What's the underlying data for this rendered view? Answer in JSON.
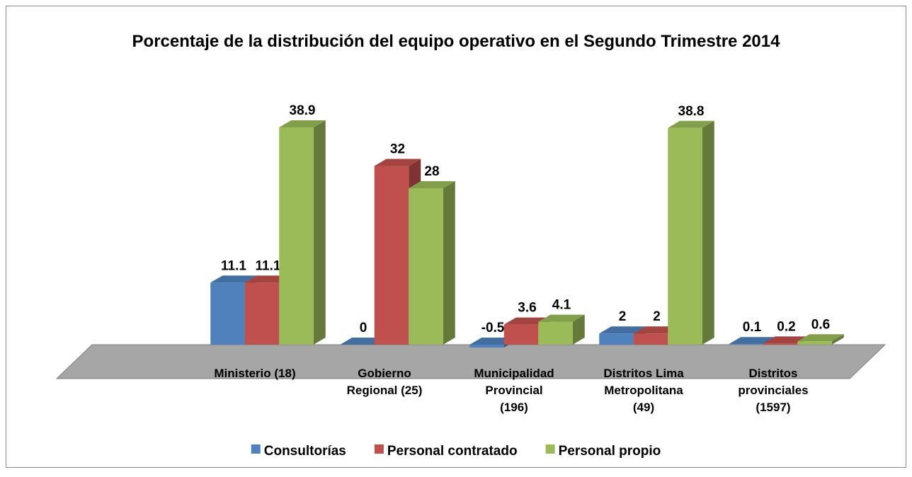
{
  "chart_data": {
    "type": "bar3d",
    "title": "Porcentaje de la distribución del equipo operativo en el Segundo Trimestre 2014",
    "categories": [
      "Ministerio (18)",
      "Gobierno\nRegional (25)",
      "Municipalidad\nProvincial\n(196)",
      "Distritos Lima\nMetropolitana\n(49)",
      "Distritos\nprovinciales\n(1597)"
    ],
    "series": [
      {
        "name": "Consultorías",
        "color": "#4f81bd",
        "values": [
          11.1,
          0,
          -0.5,
          2,
          0.1
        ]
      },
      {
        "name": "Personal contratado",
        "color": "#c0504d",
        "values": [
          11.1,
          32,
          3.6,
          2,
          0.2
        ]
      },
      {
        "name": "Personal propio",
        "color": "#9bbb59",
        "values": [
          38.9,
          28,
          4.1,
          38.8,
          0.6
        ]
      }
    ],
    "legend": "bottom"
  }
}
